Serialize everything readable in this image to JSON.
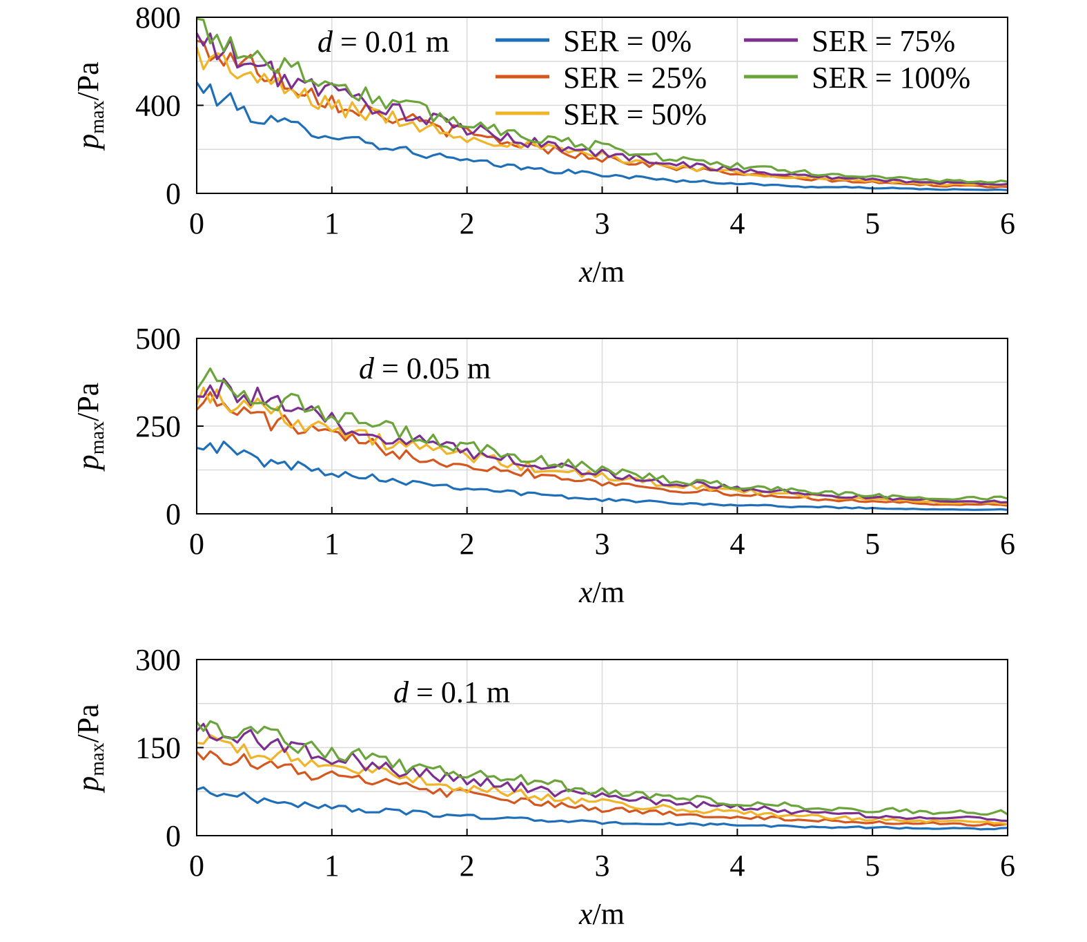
{
  "legend": [
    {
      "label": "SER = 0%",
      "color": "#1f6fb8"
    },
    {
      "label": "SER = 25%",
      "color": "#d4571e"
    },
    {
      "label": "SER = 50%",
      "color": "#f0b429"
    },
    {
      "label": "SER = 75%",
      "color": "#7b2f8e"
    },
    {
      "label": "SER = 100%",
      "color": "#6aa43a"
    }
  ],
  "chart_data": [
    {
      "type": "line",
      "annotation": {
        "var": "d",
        "text": " = 0.01 m"
      },
      "ylabel": {
        "var": "p",
        "sub": "max",
        "unit": "/Pa"
      },
      "xlabel": {
        "var": "x",
        "unit": "/m"
      },
      "xlim": [
        0,
        6
      ],
      "ylim": [
        0,
        800
      ],
      "xticks": [
        "0",
        "1",
        "2",
        "3",
        "4",
        "5",
        "6"
      ],
      "yticks": [
        "0",
        "400",
        "800"
      ],
      "grid": true,
      "legend_position": "top-right",
      "x": [
        0,
        0.5,
        1,
        1.5,
        2,
        2.5,
        3,
        3.5,
        4,
        4.5,
        5,
        5.5,
        6
      ],
      "series": [
        {
          "name": "SER = 0%",
          "values": [
            490,
            330,
            270,
            200,
            145,
            110,
            85,
            60,
            45,
            30,
            25,
            18,
            15
          ]
        },
        {
          "name": "SER = 25%",
          "values": [
            670,
            560,
            420,
            340,
            270,
            210,
            160,
            120,
            90,
            65,
            50,
            35,
            30
          ]
        },
        {
          "name": "SER = 50%",
          "values": [
            640,
            500,
            400,
            330,
            260,
            210,
            170,
            125,
            95,
            70,
            55,
            42,
            38
          ]
        },
        {
          "name": "SER = 75%",
          "values": [
            700,
            560,
            460,
            370,
            290,
            230,
            180,
            140,
            105,
            80,
            62,
            48,
            42
          ]
        },
        {
          "name": "SER = 100%",
          "values": [
            760,
            610,
            500,
            400,
            320,
            260,
            210,
            160,
            125,
            95,
            75,
            58,
            52
          ]
        }
      ]
    },
    {
      "type": "line",
      "annotation": {
        "var": "d",
        "text": " = 0.05 m"
      },
      "ylabel": {
        "var": "p",
        "sub": "max",
        "unit": "/Pa"
      },
      "xlabel": {
        "var": "x",
        "unit": "/m"
      },
      "xlim": [
        0,
        6
      ],
      "ylim": [
        0,
        500
      ],
      "xticks": [
        "0",
        "1",
        "2",
        "3",
        "4",
        "5",
        "6"
      ],
      "yticks": [
        "0",
        "250",
        "500"
      ],
      "grid": true,
      "x": [
        0,
        0.5,
        1,
        1.5,
        2,
        2.5,
        3,
        3.5,
        4,
        4.5,
        5,
        5.5,
        6
      ],
      "series": [
        {
          "name": "SER = 0%",
          "values": [
            210,
            150,
            120,
            95,
            75,
            55,
            40,
            32,
            25,
            20,
            16,
            13,
            12
          ]
        },
        {
          "name": "SER = 25%",
          "values": [
            330,
            270,
            220,
            175,
            140,
            115,
            90,
            70,
            55,
            45,
            35,
            28,
            25
          ]
        },
        {
          "name": "SER = 50%",
          "values": [
            345,
            300,
            240,
            195,
            165,
            130,
            105,
            85,
            65,
            52,
            42,
            32,
            30
          ]
        },
        {
          "name": "SER = 75%",
          "values": [
            370,
            320,
            260,
            215,
            180,
            145,
            115,
            90,
            72,
            58,
            46,
            38,
            35
          ]
        },
        {
          "name": "SER = 100%",
          "values": [
            390,
            340,
            275,
            230,
            190,
            155,
            125,
            98,
            80,
            65,
            52,
            45,
            45
          ]
        }
      ]
    },
    {
      "type": "line",
      "annotation": {
        "var": "d",
        "text": " = 0.1 m"
      },
      "ylabel": {
        "var": "p",
        "sub": "max",
        "unit": "/Pa"
      },
      "xlabel": {
        "var": "x",
        "unit": "/m"
      },
      "xlim": [
        0,
        6
      ],
      "ylim": [
        0,
        300
      ],
      "xticks": [
        "0",
        "1",
        "2",
        "3",
        "4",
        "5",
        "6"
      ],
      "yticks": [
        "0",
        "150",
        "300"
      ],
      "grid": true,
      "x": [
        0,
        0.5,
        1,
        1.5,
        2,
        2.5,
        3,
        3.5,
        4,
        4.5,
        5,
        5.5,
        6
      ],
      "series": [
        {
          "name": "SER = 0%",
          "values": [
            80,
            60,
            48,
            40,
            33,
            27,
            22,
            20,
            18,
            15,
            14,
            12,
            12
          ]
        },
        {
          "name": "SER = 25%",
          "values": [
            145,
            120,
            100,
            85,
            70,
            55,
            45,
            38,
            32,
            27,
            23,
            20,
            18
          ]
        },
        {
          "name": "SER = 50%",
          "values": [
            160,
            140,
            120,
            100,
            82,
            68,
            56,
            46,
            40,
            33,
            28,
            25,
            22
          ]
        },
        {
          "name": "SER = 75%",
          "values": [
            180,
            160,
            135,
            110,
            95,
            78,
            66,
            56,
            48,
            40,
            34,
            30,
            28
          ]
        },
        {
          "name": "SER = 100%",
          "values": [
            195,
            170,
            145,
            120,
            105,
            90,
            75,
            65,
            57,
            50,
            44,
            40,
            40
          ]
        }
      ]
    }
  ]
}
